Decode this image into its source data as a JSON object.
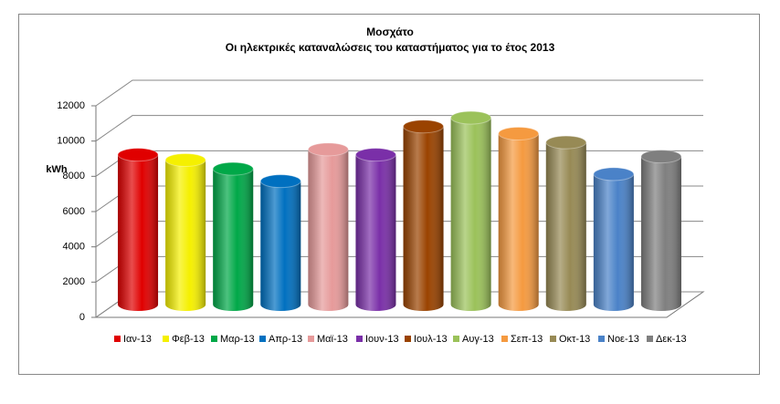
{
  "chart_data": {
    "type": "bar3d",
    "title": "Μοσχάτο",
    "subtitle": "Οι ηλεκτρικές καταναλώσεις του καταστήματος για το έτος 2013",
    "y_label": "kWh",
    "ylim": [
      0,
      12000
    ],
    "yticks": [
      0,
      2000,
      4000,
      6000,
      8000,
      10000,
      12000
    ],
    "grid": true,
    "legend": "bottom",
    "series": [
      {
        "name": "Ιαν-13",
        "color": "#e00000",
        "values": [
          8500
        ]
      },
      {
        "name": "Φεβ-13",
        "color": "#f5f000",
        "values": [
          8200
        ]
      },
      {
        "name": "Μαρ-13",
        "color": "#00a848",
        "values": [
          7700
        ]
      },
      {
        "name": "Απρ-13",
        "color": "#0070c0",
        "values": [
          7000
        ]
      },
      {
        "name": "Μαϊ-13",
        "color": "#e69a9a",
        "values": [
          8800
        ]
      },
      {
        "name": "Ιουν-13",
        "color": "#7a2fa8",
        "values": [
          8500
        ]
      },
      {
        "name": "Ιουλ-13",
        "color": "#9a4300",
        "values": [
          10100
        ]
      },
      {
        "name": "Αυγ-13",
        "color": "#9bc25a",
        "values": [
          10600
        ]
      },
      {
        "name": "Σεπ-13",
        "color": "#f59a40",
        "values": [
          9700
        ]
      },
      {
        "name": "Οκτ-13",
        "color": "#978a55",
        "values": [
          9200
        ]
      },
      {
        "name": "Νοε-13",
        "color": "#4a82c8",
        "values": [
          7400
        ]
      },
      {
        "name": "Δεκ-13",
        "color": "#7f7f7f",
        "values": [
          8400
        ]
      }
    ]
  }
}
